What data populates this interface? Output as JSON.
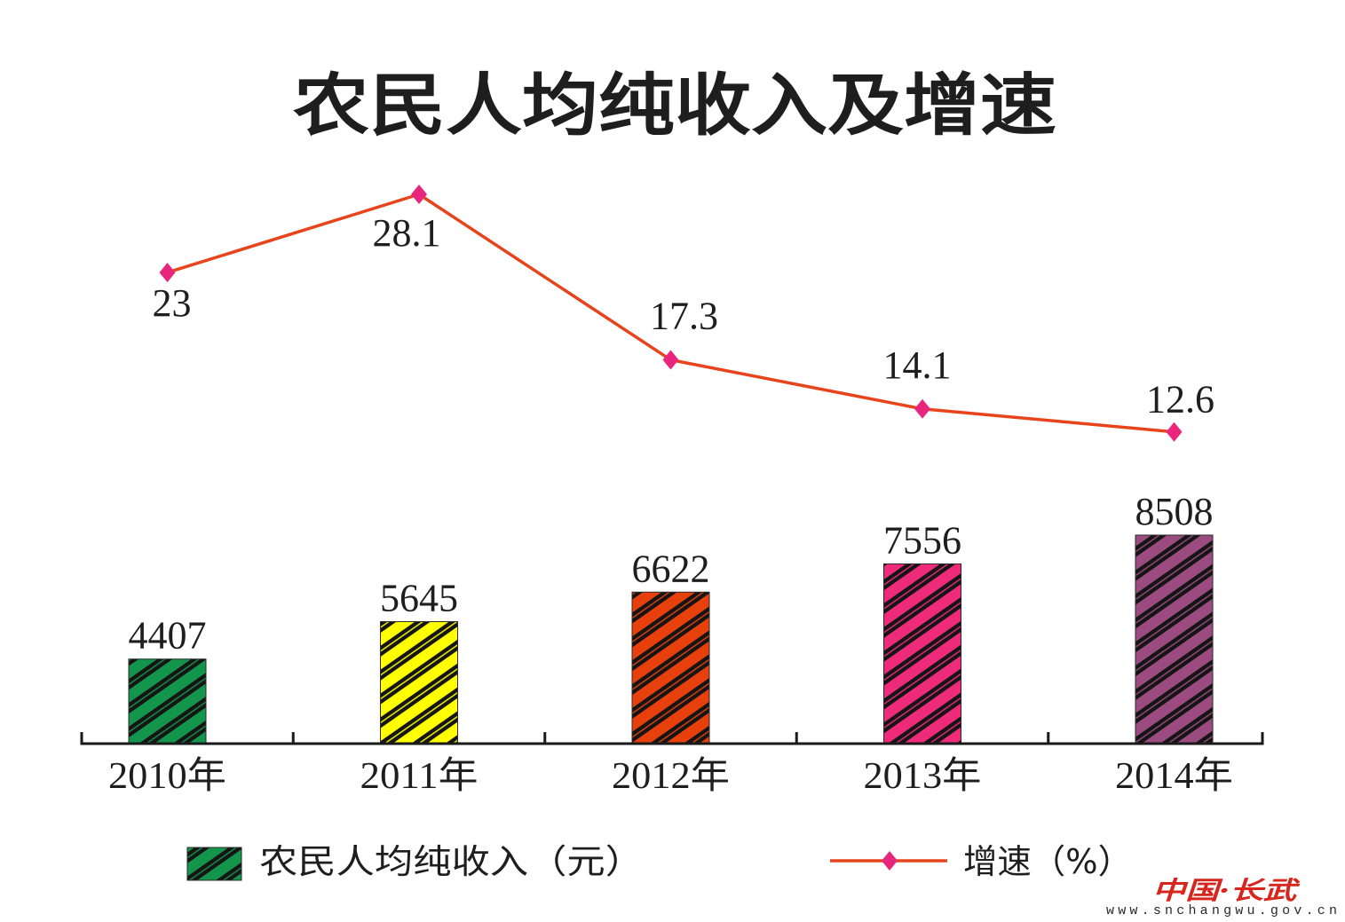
{
  "chart_data": {
    "type": "bar",
    "title": "农民人均纯收入及增速",
    "categories": [
      "2010年",
      "2011年",
      "2012年",
      "2013年",
      "2014年"
    ],
    "series": [
      {
        "name": "农民人均纯收入（元）",
        "type": "bar",
        "values": [
          4407,
          5645,
          6622,
          7556,
          8508
        ],
        "colors": [
          "#13964b",
          "#ffff00",
          "#e8400c",
          "#ee2a7b",
          "#9c4b80"
        ]
      },
      {
        "name": "增速（%）",
        "type": "line",
        "values": [
          23,
          28.1,
          17.3,
          14.1,
          12.6
        ],
        "color": "#e8441c",
        "marker": "diamond",
        "marker_color": "#e8267e"
      }
    ],
    "data_labels": true,
    "legend_position": "bottom",
    "grid": false
  },
  "watermark": {
    "logo_text": "中国·长武",
    "url": "www.snchangwu.gov.cn"
  }
}
